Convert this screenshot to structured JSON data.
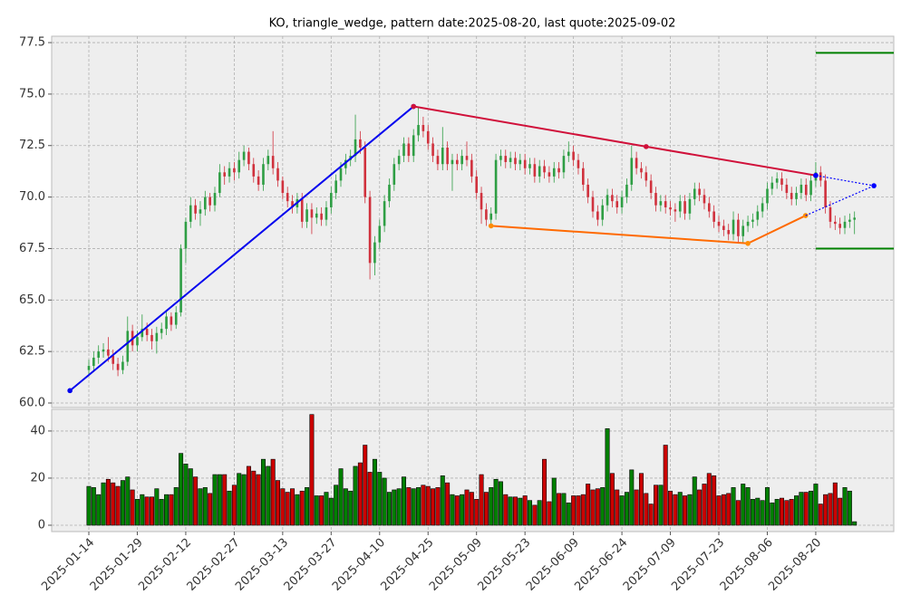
{
  "chart_data": {
    "type": "candlestick",
    "title": "KO, triangle_wedge, pattern date:2025-08-20, last quote:2025-09-02",
    "up_color": "#2e9e44",
    "down_color": "#d0313d",
    "volume_up_color": "#008000",
    "volume_down_color": "#cc0000",
    "grid": true,
    "xlim": [
      -7.67,
      166.1
    ],
    "xticks": [
      {
        "value": 0,
        "label": "2025-01-14"
      },
      {
        "value": 10,
        "label": "2025-01-29"
      },
      {
        "value": 20,
        "label": "2025-02-12"
      },
      {
        "value": 30,
        "label": "2025-02-27"
      },
      {
        "value": 40,
        "label": "2025-03-13"
      },
      {
        "value": 50,
        "label": "2025-03-27"
      },
      {
        "value": 60,
        "label": "2025-04-10"
      },
      {
        "value": 70,
        "label": "2025-04-25"
      },
      {
        "value": 80,
        "label": "2025-05-09"
      },
      {
        "value": 90,
        "label": "2025-05-23"
      },
      {
        "value": 100,
        "label": "2025-06-09"
      },
      {
        "value": 110,
        "label": "2025-06-24"
      },
      {
        "value": 120,
        "label": "2025-07-09"
      },
      {
        "value": 130,
        "label": "2025-07-23"
      },
      {
        "value": 140,
        "label": "2025-08-06"
      },
      {
        "value": 150,
        "label": "2025-08-20"
      }
    ],
    "ylim": [
      59.78,
      77.81
    ],
    "yticks": [
      {
        "value": 60,
        "label": "60.0"
      },
      62.5,
      {
        "value": 65,
        "label": "65.0"
      },
      67.5,
      {
        "value": 70,
        "label": "70.0"
      },
      72.5,
      {
        "value": 75,
        "label": "75.0"
      },
      77.5
    ],
    "y2lim": [
      -2.7,
      49.2
    ],
    "y2ticks": [
      0,
      20,
      40
    ],
    "ohlc": [
      [
        61.6,
        62.1,
        61.3,
        61.8
      ],
      [
        61.8,
        62.5,
        61.5,
        62.2
      ],
      [
        62.2,
        62.8,
        61.9,
        62.5
      ],
      [
        62.5,
        62.9,
        62.2,
        62.6
      ],
      [
        62.6,
        63.2,
        62.0,
        62.3
      ],
      [
        62.3,
        62.6,
        61.6,
        61.9
      ],
      [
        61.9,
        62.2,
        61.3,
        61.6
      ],
      [
        61.6,
        62.3,
        61.4,
        62.0
      ],
      [
        62.0,
        64.2,
        61.8,
        63.5
      ],
      [
        63.5,
        63.8,
        62.5,
        62.8
      ],
      [
        62.8,
        63.5,
        62.5,
        63.2
      ],
      [
        63.2,
        64.3,
        63.0,
        63.6
      ],
      [
        63.6,
        63.9,
        63.0,
        63.3
      ],
      [
        63.3,
        63.6,
        62.6,
        63.0
      ],
      [
        63.0,
        63.7,
        62.4,
        63.4
      ],
      [
        63.4,
        63.9,
        63.1,
        63.6
      ],
      [
        63.6,
        64.5,
        63.3,
        64.2
      ],
      [
        64.2,
        64.4,
        63.5,
        63.8
      ],
      [
        63.8,
        64.7,
        63.6,
        64.4
      ],
      [
        64.4,
        67.7,
        64.2,
        67.5
      ],
      [
        67.5,
        69.0,
        66.8,
        68.8
      ],
      [
        68.8,
        70.0,
        68.5,
        69.6
      ],
      [
        69.6,
        69.9,
        68.9,
        69.2
      ],
      [
        69.2,
        69.8,
        68.6,
        69.4
      ],
      [
        69.4,
        70.3,
        69.1,
        70.0
      ],
      [
        70.0,
        70.2,
        69.3,
        69.6
      ],
      [
        69.6,
        70.5,
        69.3,
        70.2
      ],
      [
        70.2,
        71.6,
        70.0,
        71.2
      ],
      [
        71.2,
        71.5,
        70.6,
        71.0
      ],
      [
        71.0,
        71.7,
        70.7,
        71.4
      ],
      [
        71.4,
        71.7,
        70.8,
        71.2
      ],
      [
        71.2,
        72.2,
        70.9,
        71.8
      ],
      [
        71.8,
        72.5,
        71.5,
        72.2
      ],
      [
        72.2,
        72.4,
        71.3,
        71.6
      ],
      [
        71.6,
        71.9,
        70.7,
        71.0
      ],
      [
        71.0,
        71.3,
        70.3,
        70.6
      ],
      [
        70.6,
        71.9,
        70.3,
        71.6
      ],
      [
        71.6,
        72.3,
        71.3,
        72.0
      ],
      [
        72.0,
        73.2,
        71.1,
        71.4
      ],
      [
        71.4,
        71.7,
        70.5,
        70.8
      ],
      [
        70.8,
        71.0,
        69.9,
        70.2
      ],
      [
        70.2,
        70.5,
        69.5,
        69.8
      ],
      [
        69.8,
        70.1,
        69.2,
        69.5
      ],
      [
        69.5,
        70.2,
        69.2,
        69.9
      ],
      [
        69.9,
        70.2,
        68.5,
        68.8
      ],
      [
        68.8,
        69.7,
        68.5,
        69.4
      ],
      [
        69.4,
        69.7,
        68.2,
        69.0
      ],
      [
        69.0,
        69.5,
        68.7,
        69.2
      ],
      [
        69.2,
        69.5,
        68.6,
        68.9
      ],
      [
        68.9,
        69.8,
        68.6,
        69.5
      ],
      [
        69.5,
        70.5,
        69.2,
        70.2
      ],
      [
        70.2,
        71.1,
        69.9,
        70.8
      ],
      [
        70.8,
        71.7,
        70.5,
        71.4
      ],
      [
        71.4,
        72.1,
        71.1,
        71.8
      ],
      [
        71.8,
        72.3,
        71.5,
        72.0
      ],
      [
        72.0,
        74.0,
        71.7,
        72.8
      ],
      [
        72.8,
        73.2,
        72.1,
        72.4
      ],
      [
        72.4,
        72.7,
        69.7,
        70.0
      ],
      [
        70.0,
        70.3,
        66.0,
        66.8
      ],
      [
        66.8,
        68.1,
        66.2,
        67.8
      ],
      [
        67.8,
        68.9,
        67.5,
        68.6
      ],
      [
        68.6,
        70.1,
        68.3,
        69.8
      ],
      [
        69.8,
        70.9,
        69.5,
        70.6
      ],
      [
        70.6,
        71.9,
        70.3,
        71.6
      ],
      [
        71.6,
        72.3,
        71.3,
        72.0
      ],
      [
        72.0,
        72.9,
        71.7,
        72.6
      ],
      [
        72.6,
        72.9,
        71.7,
        72.0
      ],
      [
        72.0,
        73.3,
        71.7,
        73.0
      ],
      [
        73.0,
        74.4,
        72.7,
        73.5
      ],
      [
        73.5,
        73.9,
        72.9,
        73.2
      ],
      [
        73.2,
        73.5,
        72.3,
        72.6
      ],
      [
        72.6,
        72.9,
        71.7,
        72.0
      ],
      [
        72.0,
        72.3,
        71.3,
        71.6
      ],
      [
        71.6,
        73.4,
        71.3,
        72.4
      ],
      [
        72.4,
        72.7,
        71.3,
        71.6
      ],
      [
        71.6,
        72.1,
        70.3,
        71.8
      ],
      [
        71.8,
        72.1,
        71.3,
        71.6
      ],
      [
        71.6,
        72.3,
        71.3,
        72.0
      ],
      [
        72.0,
        72.7,
        71.5,
        71.8
      ],
      [
        71.8,
        72.1,
        70.7,
        71.0
      ],
      [
        71.0,
        71.3,
        69.9,
        70.2
      ],
      [
        70.2,
        70.5,
        68.7,
        69.4
      ],
      [
        69.4,
        69.7,
        68.6,
        68.9
      ],
      [
        68.9,
        69.5,
        68.6,
        69.2
      ],
      [
        69.2,
        72.1,
        68.9,
        71.8
      ],
      [
        71.8,
        72.3,
        71.5,
        72.0
      ],
      [
        72.0,
        72.3,
        71.4,
        71.7
      ],
      [
        71.7,
        72.2,
        71.4,
        71.9
      ],
      [
        71.9,
        72.2,
        71.3,
        71.6
      ],
      [
        71.6,
        72.1,
        71.3,
        71.8
      ],
      [
        71.8,
        72.1,
        71.1,
        71.4
      ],
      [
        71.4,
        71.9,
        71.1,
        71.6
      ],
      [
        71.6,
        71.9,
        70.7,
        71.0
      ],
      [
        71.0,
        71.8,
        70.7,
        71.5
      ],
      [
        71.5,
        71.8,
        70.9,
        71.2
      ],
      [
        71.2,
        71.5,
        70.7,
        71.0
      ],
      [
        71.0,
        71.7,
        70.7,
        71.4
      ],
      [
        71.4,
        71.7,
        70.9,
        71.2
      ],
      [
        71.2,
        72.3,
        70.9,
        72.0
      ],
      [
        72.0,
        72.7,
        71.7,
        72.2
      ],
      [
        72.2,
        72.5,
        71.5,
        71.8
      ],
      [
        71.8,
        72.1,
        71.1,
        71.4
      ],
      [
        71.4,
        71.7,
        70.3,
        70.6
      ],
      [
        70.6,
        70.9,
        69.7,
        70.0
      ],
      [
        70.0,
        70.3,
        69.0,
        69.3
      ],
      [
        69.3,
        69.6,
        68.6,
        68.9
      ],
      [
        68.9,
        69.9,
        68.6,
        69.6
      ],
      [
        69.6,
        70.4,
        69.3,
        70.1
      ],
      [
        70.1,
        70.4,
        69.5,
        69.8
      ],
      [
        69.8,
        70.1,
        69.2,
        69.5
      ],
      [
        69.5,
        70.3,
        69.2,
        70.0
      ],
      [
        70.0,
        70.9,
        69.7,
        70.6
      ],
      [
        70.6,
        72.5,
        70.3,
        71.9
      ],
      [
        71.9,
        72.2,
        71.1,
        71.4
      ],
      [
        71.4,
        71.7,
        70.9,
        71.2
      ],
      [
        71.2,
        71.5,
        70.5,
        70.8
      ],
      [
        70.8,
        71.1,
        69.9,
        70.2
      ],
      [
        70.2,
        70.5,
        69.3,
        69.6
      ],
      [
        69.6,
        70.1,
        69.3,
        69.8
      ],
      [
        69.8,
        70.1,
        69.2,
        69.5
      ],
      [
        69.5,
        69.8,
        69.1,
        69.4
      ],
      [
        69.4,
        69.7,
        68.8,
        69.3
      ],
      [
        69.3,
        70.1,
        69.0,
        69.8
      ],
      [
        69.8,
        70.1,
        68.9,
        69.2
      ],
      [
        69.2,
        70.2,
        68.9,
        69.9
      ],
      [
        69.9,
        70.7,
        69.6,
        70.4
      ],
      [
        70.4,
        70.7,
        69.8,
        70.1
      ],
      [
        70.1,
        70.4,
        69.4,
        69.7
      ],
      [
        69.7,
        70.0,
        69.0,
        69.3
      ],
      [
        69.3,
        69.6,
        68.5,
        68.8
      ],
      [
        68.8,
        69.1,
        68.3,
        68.6
      ],
      [
        68.6,
        68.9,
        68.1,
        68.4
      ],
      [
        68.4,
        68.7,
        67.9,
        68.2
      ],
      [
        68.2,
        69.3,
        67.9,
        68.9
      ],
      [
        68.9,
        69.2,
        67.8,
        68.1
      ],
      [
        68.1,
        68.9,
        67.8,
        68.6
      ],
      [
        68.6,
        69.1,
        68.3,
        68.8
      ],
      [
        68.8,
        69.2,
        68.5,
        68.9
      ],
      [
        68.9,
        69.6,
        68.6,
        69.3
      ],
      [
        69.3,
        70.0,
        69.0,
        69.7
      ],
      [
        69.7,
        70.7,
        69.4,
        70.4
      ],
      [
        70.4,
        71.0,
        70.1,
        70.7
      ],
      [
        70.7,
        71.2,
        70.4,
        70.9
      ],
      [
        70.9,
        71.2,
        70.3,
        70.6
      ],
      [
        70.6,
        70.9,
        69.9,
        70.2
      ],
      [
        70.2,
        70.5,
        69.6,
        69.9
      ],
      [
        69.9,
        70.5,
        69.6,
        70.2
      ],
      [
        70.2,
        70.9,
        69.9,
        70.6
      ],
      [
        70.6,
        70.9,
        69.8,
        70.1
      ],
      [
        70.1,
        71.1,
        69.8,
        70.8
      ],
      [
        70.8,
        71.7,
        70.5,
        71.2
      ],
      [
        71.2,
        71.5,
        70.5,
        70.8
      ],
      [
        70.8,
        71.1,
        69.2,
        69.5
      ],
      [
        69.5,
        69.8,
        68.5,
        68.8
      ],
      [
        68.8,
        69.1,
        68.4,
        68.7
      ],
      [
        68.7,
        69.0,
        68.2,
        68.5
      ],
      [
        68.5,
        69.1,
        68.2,
        68.8
      ],
      [
        68.8,
        69.2,
        68.5,
        68.9
      ],
      [
        68.9,
        69.3,
        68.2,
        69.0
      ]
    ],
    "volume": [
      16.5,
      16,
      13,
      18,
      19.5,
      18,
      16.5,
      19,
      20.5,
      15,
      11,
      13,
      12,
      12,
      15.5,
      11,
      13,
      13,
      16,
      30.5,
      26,
      24,
      20.5,
      15.5,
      16,
      13.5,
      21.5,
      21.5,
      21.5,
      14.5,
      17,
      22,
      21.5,
      25,
      23,
      21.5,
      28,
      25,
      28,
      19,
      15.5,
      14,
      15.5,
      13,
      14.5,
      16,
      47,
      12.5,
      12.5,
      14,
      11.5,
      17,
      24,
      15.5,
      14.5,
      25,
      26.5,
      34,
      22.5,
      28,
      22.5,
      20,
      14,
      15,
      15.5,
      20.5,
      16,
      15.5,
      16,
      17,
      16.5,
      15.5,
      16,
      21,
      18,
      13,
      12.5,
      13,
      15,
      14,
      11,
      21.5,
      14,
      16,
      19.5,
      18.5,
      13,
      12,
      12,
      11.5,
      12.5,
      10.5,
      8.5,
      10.5,
      28,
      10,
      20,
      13.5,
      13.5,
      9.5,
      12.5,
      12.5,
      13,
      17.5,
      15,
      15.5,
      16,
      41,
      22,
      15,
      12.5,
      14,
      23.5,
      15,
      22,
      13.5,
      9,
      17,
      17,
      34,
      14.5,
      13,
      14,
      12.5,
      13,
      20.5,
      15,
      17.5,
      22,
      21,
      12.5,
      13,
      13.5,
      16,
      10.5,
      17.5,
      16,
      11,
      11.5,
      10.5,
      16,
      9.5,
      11,
      11.5,
      10.5,
      11,
      12.5,
      14,
      14,
      14.5,
      17.5,
      9,
      13,
      13.5,
      18,
      11.5,
      16,
      14.5,
      1.5
    ],
    "overlays": [
      {
        "x": [
          -3.9,
          67
        ],
        "y": [
          60.6,
          74.4
        ],
        "color": "#0000ee",
        "style": "solid",
        "marker_color": "#0000ee"
      },
      {
        "x": [
          67,
          115,
          150
        ],
        "y": [
          74.4,
          72.45,
          71.05
        ],
        "color": "#d0103a",
        "style": "solid",
        "marker_color": "#d0103a"
      },
      {
        "x": [
          83,
          136,
          147.9
        ],
        "y": [
          68.6,
          67.75,
          69.1
        ],
        "color": "#ff6a00",
        "style": "solid",
        "marker_color": "#ff8c00"
      },
      {
        "x": [
          150,
          162
        ],
        "y": [
          71.05,
          70.55
        ],
        "color": "#0000ff",
        "style": "dotted",
        "marker_color": "#0000ff"
      },
      {
        "x": [
          147.9,
          162
        ],
        "y": [
          69.1,
          70.55
        ],
        "color": "#0000ff",
        "style": "dotted"
      },
      {
        "x": [
          150,
          166.1
        ],
        "y": [
          77,
          77
        ],
        "color": "#008000",
        "style": "solid"
      },
      {
        "x": [
          150,
          166.1
        ],
        "y": [
          67.5,
          67.5
        ],
        "color": "#008000",
        "style": "solid"
      }
    ]
  }
}
